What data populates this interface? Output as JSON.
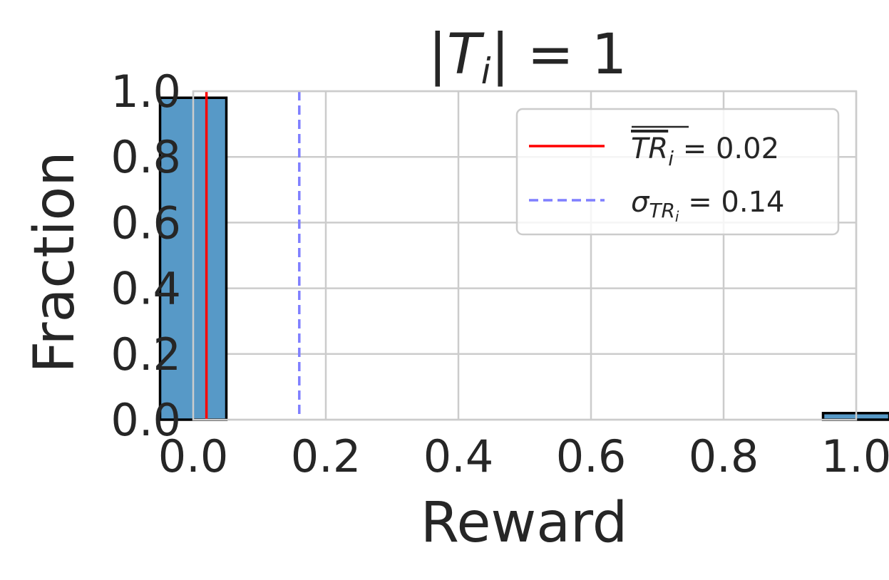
{
  "chart_data": {
    "type": "bar",
    "title": "|T_i| = 1",
    "title_parts": {
      "bar_left": "|",
      "var": "T",
      "sub": "i",
      "bar_right": "|",
      "rest": " = 1"
    },
    "xlabel": "Reward",
    "ylabel": "Fraction",
    "xlim": [
      0.0,
      1.0
    ],
    "ylim": [
      0.0,
      1.0
    ],
    "xticks": [
      0.0,
      0.2,
      0.4,
      0.6,
      0.8,
      1.0
    ],
    "yticks": [
      0.0,
      0.2,
      0.4,
      0.6,
      0.8,
      1.0
    ],
    "tick_labels": [
      "0.0",
      "0.2",
      "0.4",
      "0.6",
      "0.8",
      "1.0"
    ],
    "grid": true,
    "bars": [
      {
        "x_start": -0.05,
        "x_end": 0.05,
        "value": 0.98
      },
      {
        "x_start": 0.95,
        "x_end": 1.05,
        "value": 0.02
      }
    ],
    "vlines": [
      {
        "x": 0.02,
        "color": "#ff0000",
        "style": "solid"
      },
      {
        "x": 0.16,
        "color": "#7f7fff",
        "style": "dashed"
      }
    ],
    "legend": {
      "position": "top-right",
      "entries": [
        {
          "var": "TR",
          "sub": "i",
          "rest": " = 0.02",
          "overline": true
        },
        {
          "var": "σ",
          "sub": "TR",
          "subsub": "i",
          "rest": " = 0.14",
          "overline": false
        }
      ]
    },
    "colors": {
      "bar": "#5799c7",
      "edge": "#000000",
      "grid": "#cccccc",
      "text": "#262626"
    }
  }
}
